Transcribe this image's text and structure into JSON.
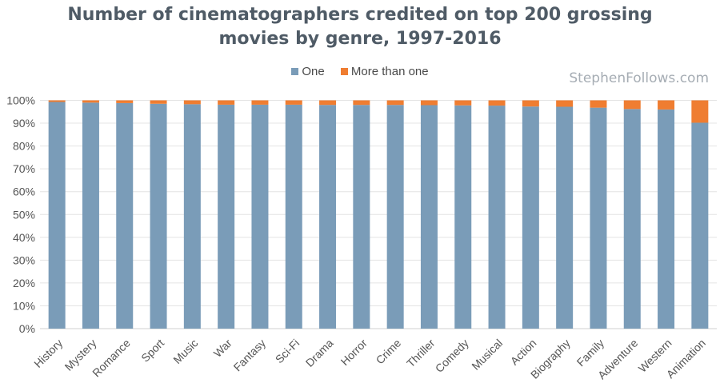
{
  "watermark": "StephenFollows.com",
  "chart_data": {
    "type": "bar",
    "stacked": true,
    "title_line1": "Number of cinematographers credited on top 200 grossing",
    "title_line2": "movies by genre, 1997-2016",
    "categories": [
      "History",
      "Mystery",
      "Romance",
      "Sport",
      "Music",
      "War",
      "Fantasy",
      "Sci-Fi",
      "Drama",
      "Horror",
      "Crime",
      "Thriller",
      "Comedy",
      "Musical",
      "Action",
      "Biography",
      "Family",
      "Adventure",
      "Western",
      "Animation"
    ],
    "series": [
      {
        "name": "One",
        "color": "#7a9cb8",
        "values": [
          99.3,
          99.0,
          98.8,
          98.5,
          98.3,
          98.1,
          98.1,
          98.1,
          98.0,
          98.0,
          98.0,
          97.9,
          97.8,
          97.7,
          97.3,
          97.2,
          96.8,
          96.2,
          96.0,
          90.2
        ]
      },
      {
        "name": "More than one",
        "color": "#ef7d31",
        "values": [
          0.7,
          1.0,
          1.2,
          1.5,
          1.7,
          1.9,
          1.9,
          1.9,
          2.0,
          2.0,
          2.0,
          2.1,
          2.2,
          2.3,
          2.7,
          2.8,
          3.2,
          3.8,
          4.0,
          9.8
        ]
      }
    ],
    "y_ticks": [
      "0%",
      "10%",
      "20%",
      "30%",
      "40%",
      "50%",
      "60%",
      "70%",
      "80%",
      "90%",
      "100%"
    ],
    "ylim": [
      0,
      100
    ],
    "grid": true,
    "legend_position": "top"
  }
}
